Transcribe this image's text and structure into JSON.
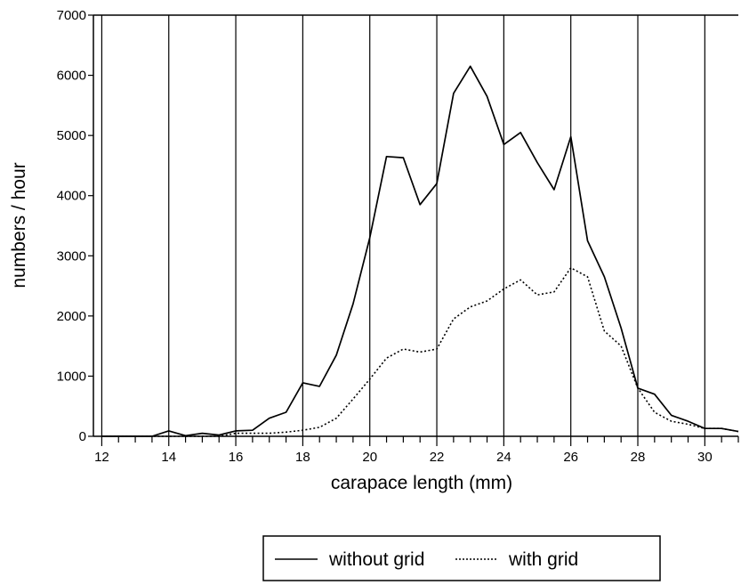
{
  "chart_data": {
    "type": "line",
    "title": "",
    "xlabel": "carapace length (mm)",
    "ylabel": "numbers / hour",
    "xlim": [
      11.75,
      31.0
    ],
    "ylim": [
      0,
      7000
    ],
    "x_ticks": [
      12,
      14,
      16,
      18,
      20,
      22,
      24,
      26,
      28,
      30
    ],
    "x_minor_step": 0.5,
    "y_ticks": [
      0,
      1000,
      2000,
      3000,
      4000,
      5000,
      6000,
      7000
    ],
    "grid": "vertical lines at every 2 mm",
    "legend_position": "bottom-center",
    "series": [
      {
        "name": "without grid",
        "style": "solid",
        "points": [
          [
            12,
            0
          ],
          [
            12.5,
            0
          ],
          [
            13,
            0
          ],
          [
            13.5,
            0
          ],
          [
            14,
            90
          ],
          [
            14.5,
            10
          ],
          [
            15,
            50
          ],
          [
            15.5,
            20
          ],
          [
            16,
            90
          ],
          [
            16.5,
            100
          ],
          [
            17,
            300
          ],
          [
            17.5,
            400
          ],
          [
            18,
            890
          ],
          [
            18.5,
            830
          ],
          [
            19,
            1350
          ],
          [
            19.5,
            2200
          ],
          [
            20,
            3300
          ],
          [
            20.5,
            4650
          ],
          [
            21,
            4630
          ],
          [
            21.5,
            3850
          ],
          [
            22,
            4200
          ],
          [
            22.5,
            5700
          ],
          [
            23,
            6150
          ],
          [
            23.5,
            5650
          ],
          [
            24,
            4850
          ],
          [
            24.5,
            5050
          ],
          [
            25,
            4550
          ],
          [
            25.5,
            4100
          ],
          [
            26,
            4980
          ],
          [
            26.5,
            3250
          ],
          [
            27,
            2650
          ],
          [
            27.5,
            1800
          ],
          [
            28,
            800
          ],
          [
            28.5,
            700
          ],
          [
            29,
            350
          ],
          [
            29.5,
            250
          ],
          [
            30,
            130
          ],
          [
            30.5,
            130
          ],
          [
            31,
            80
          ]
        ]
      },
      {
        "name": "with grid",
        "style": "dotted",
        "points": [
          [
            12,
            0
          ],
          [
            12.5,
            0
          ],
          [
            13,
            0
          ],
          [
            13.5,
            0
          ],
          [
            14,
            0
          ],
          [
            14.5,
            0
          ],
          [
            15,
            0
          ],
          [
            15.5,
            0
          ],
          [
            16,
            50
          ],
          [
            16.5,
            50
          ],
          [
            17,
            50
          ],
          [
            17.5,
            70
          ],
          [
            18,
            100
          ],
          [
            18.5,
            150
          ],
          [
            19,
            300
          ],
          [
            19.5,
            620
          ],
          [
            20,
            950
          ],
          [
            20.5,
            1300
          ],
          [
            21,
            1450
          ],
          [
            21.5,
            1400
          ],
          [
            22,
            1450
          ],
          [
            22.5,
            1950
          ],
          [
            23,
            2150
          ],
          [
            23.5,
            2250
          ],
          [
            24,
            2450
          ],
          [
            24.5,
            2600
          ],
          [
            25,
            2350
          ],
          [
            25.5,
            2400
          ],
          [
            26,
            2800
          ],
          [
            26.5,
            2650
          ],
          [
            27,
            1750
          ],
          [
            27.5,
            1500
          ],
          [
            28,
            800
          ],
          [
            28.5,
            400
          ],
          [
            29,
            250
          ],
          [
            29.5,
            200
          ],
          [
            30,
            130
          ],
          [
            30.5,
            130
          ],
          [
            31,
            80
          ]
        ]
      }
    ]
  },
  "legend": {
    "items": [
      {
        "label": "without grid",
        "style": "solid"
      },
      {
        "label": "with grid",
        "style": "dotted"
      }
    ]
  }
}
